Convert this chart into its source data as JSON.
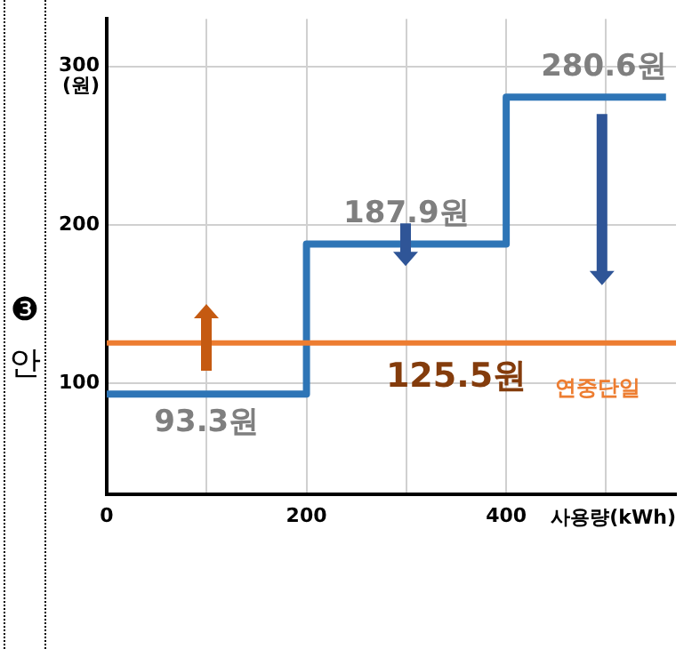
{
  "chart_data": {
    "type": "step",
    "title": "❸ 안",
    "xlabel": "사용량(kWh)",
    "ylabel": "(원)",
    "x": [
      0,
      200,
      400,
      560
    ],
    "series": [
      {
        "color": "#2e75b6",
        "values": [
          93.3,
          187.9,
          280.6,
          280.6
        ],
        "value_labels": [
          "93.3원",
          "187.9원",
          "280.6원",
          null
        ]
      }
    ],
    "ref_lines": [
      {
        "axis": "y",
        "value": 125.5,
        "label": "연중단일",
        "color": "#ed7d31"
      }
    ],
    "annotations": [
      {
        "text": "125.5원",
        "x": 350,
        "y": 125.5
      }
    ],
    "xlim": [
      0,
      570
    ],
    "ylim": [
      30,
      330
    ],
    "xticks": [
      0,
      {
        "value": 100,
        "label": null
      },
      200,
      {
        "value": 300,
        "label": null
      },
      400,
      {
        "value": 500,
        "label": null
      }
    ],
    "yticks": [
      100,
      200,
      300
    ],
    "grid": true,
    "legend": false,
    "marker": "none",
    "line_style": "solid"
  }
}
